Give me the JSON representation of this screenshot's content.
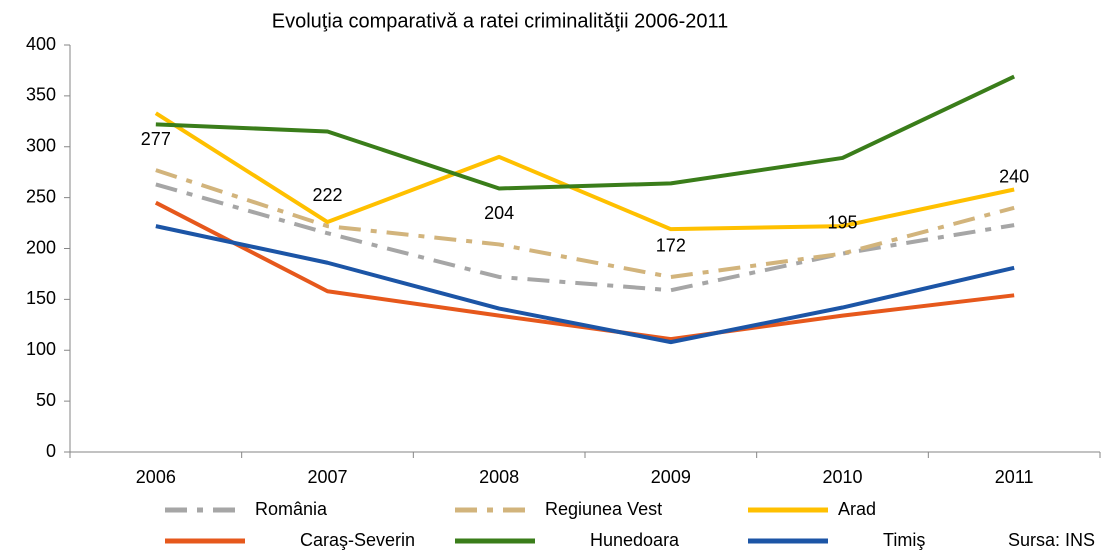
{
  "chart_data": {
    "type": "line",
    "title": "Evoluţia comparativă a ratei criminalităţii 2006-2011",
    "annotation": "Sursa: INS",
    "categories": [
      "2006",
      "2007",
      "2008",
      "2009",
      "2010",
      "2011"
    ],
    "series": [
      {
        "name": "România",
        "color": "#a6a6a6",
        "dashed": true,
        "values": [
          263,
          215,
          172,
          159,
          195,
          223
        ]
      },
      {
        "name": "Regiunea Vest",
        "color": "#d2b47c",
        "dashed": true,
        "values": [
          277,
          222,
          204,
          172,
          195,
          240
        ],
        "show_labels": true
      },
      {
        "name": "Arad",
        "color": "#ffc000",
        "dashed": false,
        "values": [
          333,
          226,
          290,
          219,
          222,
          258
        ]
      },
      {
        "name": "Caraş-Severin",
        "color": "#e6581c",
        "dashed": false,
        "values": [
          245,
          158,
          134,
          111,
          134,
          154
        ]
      },
      {
        "name": "Hunedoara",
        "color": "#3a7d1a",
        "dashed": false,
        "values": [
          322,
          315,
          259,
          264,
          289,
          369
        ]
      },
      {
        "name": "Timiş",
        "color": "#1c55a6",
        "dashed": false,
        "values": [
          222,
          186,
          141,
          108,
          142,
          181
        ]
      }
    ],
    "ylim": [
      0,
      400
    ],
    "yticks": [
      0,
      50,
      100,
      150,
      200,
      250,
      300,
      350,
      400
    ],
    "legend": "bottom"
  }
}
